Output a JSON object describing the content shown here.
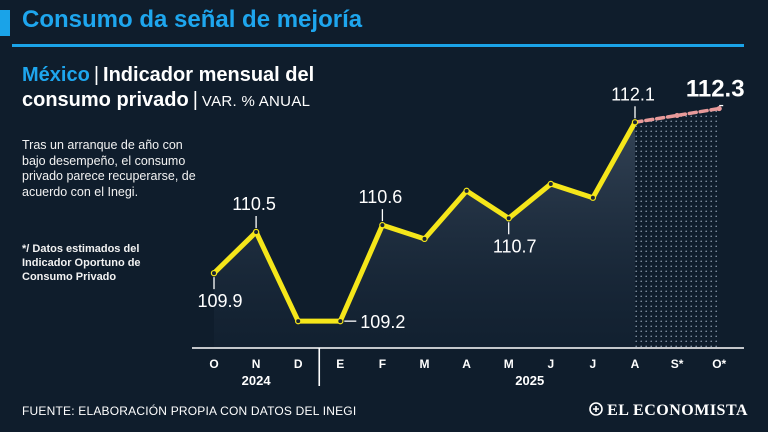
{
  "headline": "Consumo da señal de mejoría",
  "title": {
    "country": "México",
    "line1_rest": "Indicador mensual del",
    "line2": "consumo privado",
    "units": "VAR. % ANUAL"
  },
  "description": "Tras un arranque de año con bajo desempeño, el consumo privado parece recuperarse, de acuerdo con el Inegi.",
  "footnote": "*/ Datos estimados del Indicador Oportuno de Consumo Privado",
  "source": "FUENTE: ELABORACIÓN PROPIA CON DATOS DEL INEGI",
  "logo": "EL ECONOMISTA",
  "colors": {
    "background": "#0f1d2c",
    "accent": "#1ea6ee",
    "line": "#f5e61a",
    "estimate": "#e89a9a"
  },
  "chart_data": {
    "type": "line",
    "categories": [
      "O",
      "N",
      "D",
      "E",
      "F",
      "M",
      "A",
      "M",
      "J",
      "J",
      "A",
      "S*",
      "O*"
    ],
    "year_groups": [
      {
        "label": "2024",
        "start": 0,
        "end": 2
      },
      {
        "label": "2025",
        "start": 3,
        "end": 12
      }
    ],
    "series": [
      {
        "values": [
          109.9,
          110.5,
          109.2,
          109.2,
          110.6,
          110.4,
          111.1,
          110.7,
          111.2,
          111.0,
          112.1,
          112.2,
          112.3
        ],
        "estimated_from_index": 11
      }
    ],
    "labels": [
      {
        "index": 0,
        "text": "109.9",
        "position": "below"
      },
      {
        "index": 1,
        "text": "110.5",
        "position": "above"
      },
      {
        "index": 3,
        "text": "109.2",
        "position": "right"
      },
      {
        "index": 4,
        "text": "110.6",
        "position": "above"
      },
      {
        "index": 7,
        "text": "110.7",
        "position": "below"
      },
      {
        "index": 10,
        "text": "112.1",
        "position": "above"
      },
      {
        "index": 12,
        "text": "112.3",
        "position": "above-emphasis"
      }
    ],
    "ylim": [
      108.75,
      112.6
    ],
    "grid": false
  }
}
